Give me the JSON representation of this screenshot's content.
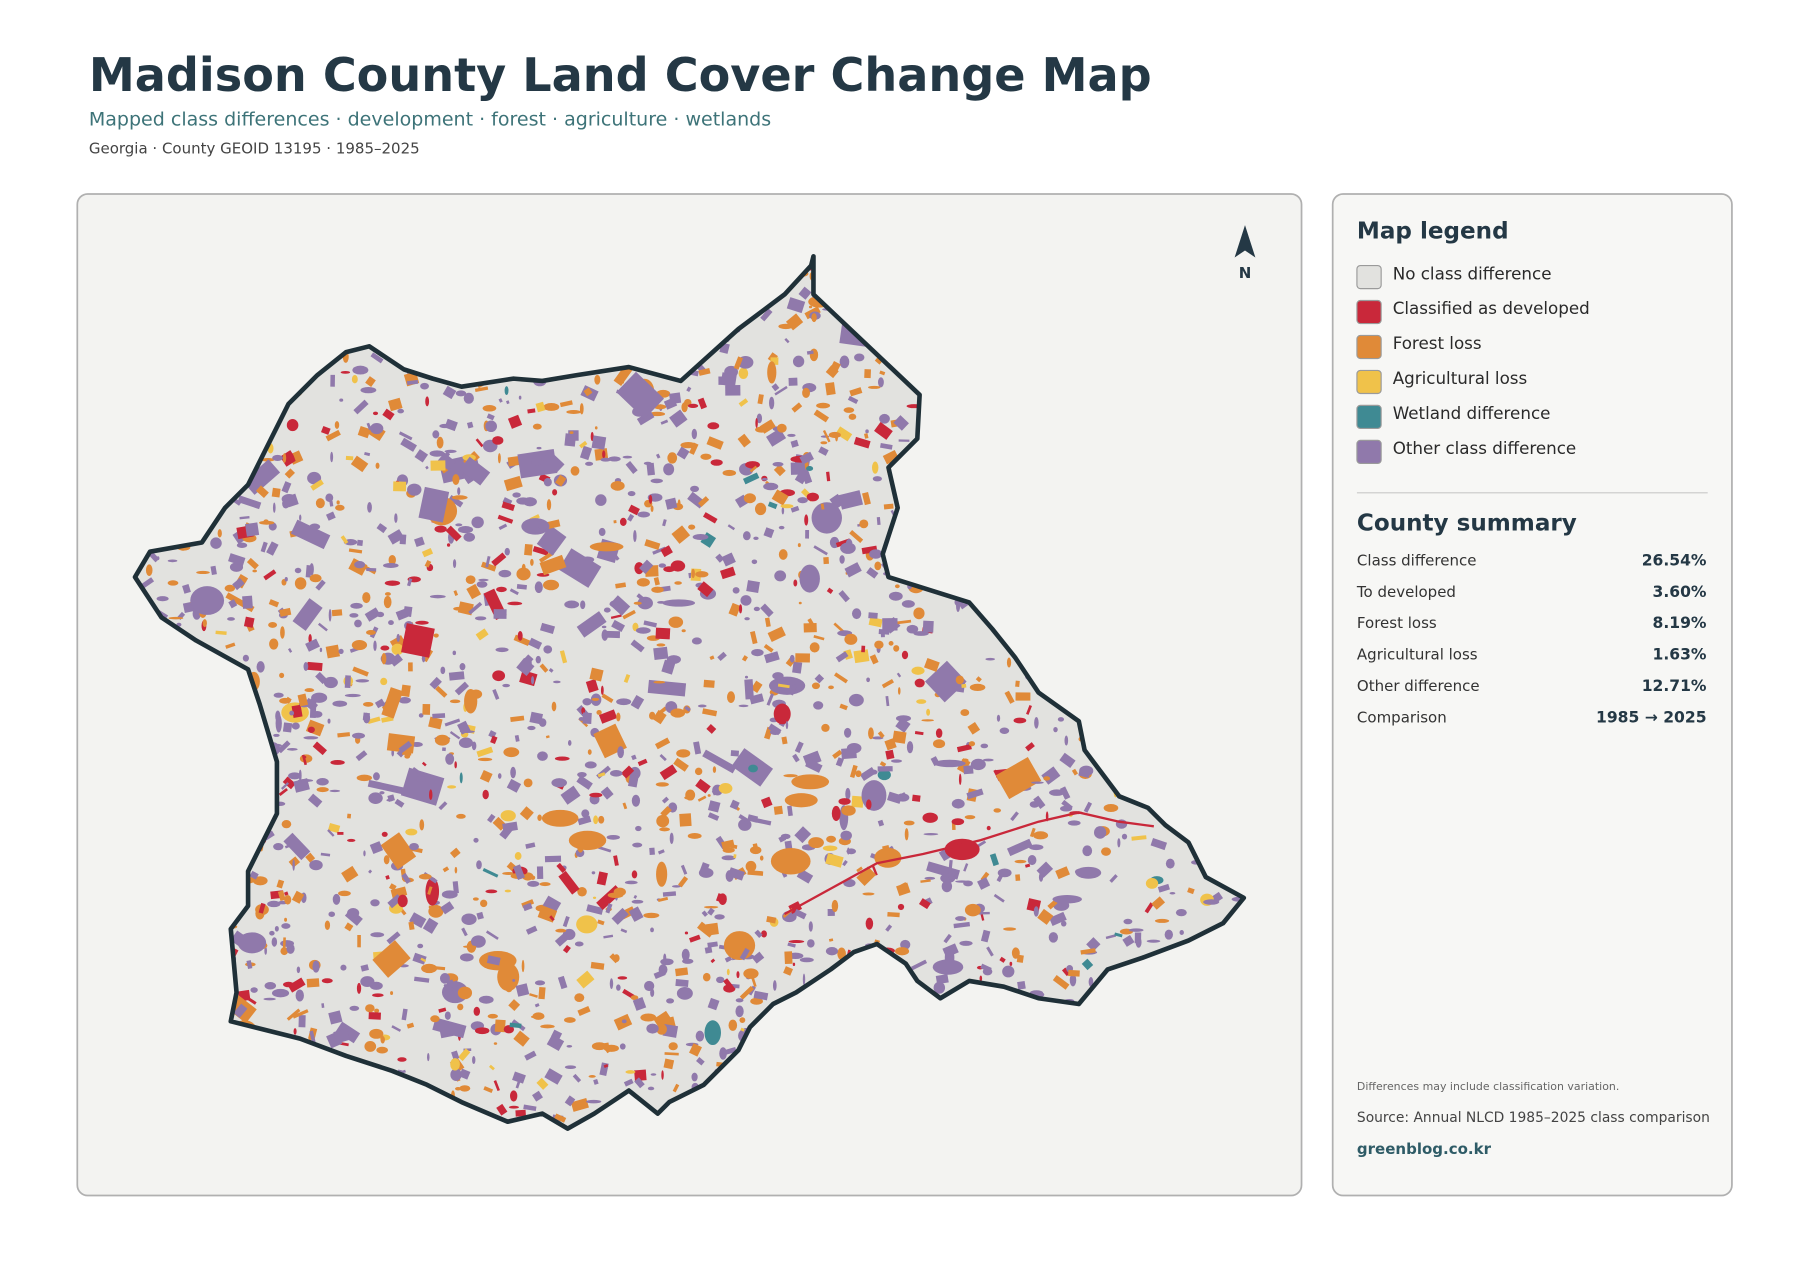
{
  "header": {
    "title": "Madison County Land Cover Change Map",
    "subtitle": "Mapped class differences · development · forest · agriculture · wetlands",
    "meta": "Georgia · County GEOID 13195 · 1985–2025"
  },
  "map": {
    "north_label": "N"
  },
  "legend": {
    "title": "Map legend",
    "items": [
      {
        "label": "No class difference",
        "color": "#e2e2df"
      },
      {
        "label": "Classified as developed",
        "color": "#c9283a"
      },
      {
        "label": "Forest loss",
        "color": "#e08a38"
      },
      {
        "label": "Agricultural loss",
        "color": "#f0c24a"
      },
      {
        "label": "Wetland difference",
        "color": "#3f8a93"
      },
      {
        "label": "Other class difference",
        "color": "#9079ab"
      }
    ]
  },
  "summary": {
    "title": "County summary",
    "rows": [
      [
        "Class difference",
        "26.54%"
      ],
      [
        "To developed",
        "3.60%"
      ],
      [
        "Forest loss",
        "8.19%"
      ],
      [
        "Agricultural loss",
        "1.63%"
      ],
      [
        "Other difference",
        "12.71%"
      ],
      [
        "Comparison",
        "1985 → 2025"
      ]
    ]
  },
  "notes": {
    "caveat": "Differences may include classification variation.",
    "source": "Source: Annual NLCD 1985–2025 class comparison",
    "site": "greenblog.co.kr"
  }
}
